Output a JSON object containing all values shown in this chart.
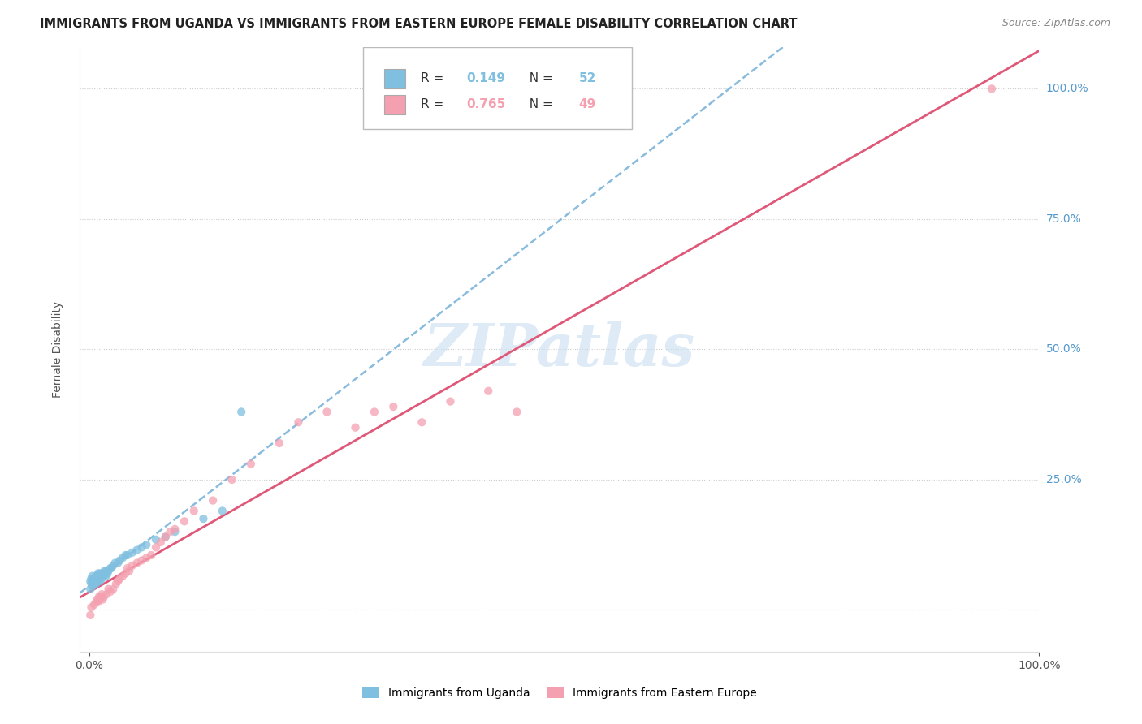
{
  "title": "IMMIGRANTS FROM UGANDA VS IMMIGRANTS FROM EASTERN EUROPE FEMALE DISABILITY CORRELATION CHART",
  "source": "Source: ZipAtlas.com",
  "ylabel": "Female Disability",
  "series1": {
    "name": "Immigrants from Uganda",
    "color": "#7fbfdf",
    "R": 0.149,
    "N": 52,
    "x": [
      0.001,
      0.001,
      0.002,
      0.002,
      0.003,
      0.003,
      0.004,
      0.004,
      0.005,
      0.005,
      0.006,
      0.006,
      0.007,
      0.007,
      0.008,
      0.009,
      0.009,
      0.01,
      0.01,
      0.011,
      0.011,
      0.012,
      0.013,
      0.013,
      0.014,
      0.015,
      0.015,
      0.016,
      0.017,
      0.018,
      0.018,
      0.019,
      0.02,
      0.022,
      0.023,
      0.025,
      0.027,
      0.03,
      0.032,
      0.035,
      0.038,
      0.04,
      0.045,
      0.05,
      0.055,
      0.06,
      0.07,
      0.08,
      0.09,
      0.12,
      0.14,
      0.16
    ],
    "y": [
      0.04,
      0.055,
      0.05,
      0.06,
      0.045,
      0.065,
      0.05,
      0.055,
      0.05,
      0.06,
      0.055,
      0.06,
      0.05,
      0.065,
      0.06,
      0.055,
      0.07,
      0.06,
      0.065,
      0.055,
      0.07,
      0.065,
      0.06,
      0.07,
      0.065,
      0.07,
      0.065,
      0.075,
      0.07,
      0.065,
      0.075,
      0.07,
      0.075,
      0.08,
      0.08,
      0.085,
      0.09,
      0.09,
      0.095,
      0.1,
      0.105,
      0.105,
      0.11,
      0.115,
      0.12,
      0.125,
      0.135,
      0.14,
      0.15,
      0.175,
      0.19,
      0.38
    ]
  },
  "series2": {
    "name": "Immigrants from Eastern Europe",
    "color": "#f4a0b0",
    "R": 0.765,
    "N": 49,
    "x": [
      0.001,
      0.002,
      0.005,
      0.007,
      0.008,
      0.009,
      0.01,
      0.011,
      0.012,
      0.013,
      0.014,
      0.015,
      0.018,
      0.02,
      0.022,
      0.025,
      0.028,
      0.03,
      0.032,
      0.035,
      0.038,
      0.04,
      0.042,
      0.045,
      0.05,
      0.055,
      0.06,
      0.065,
      0.07,
      0.075,
      0.08,
      0.085,
      0.09,
      0.1,
      0.11,
      0.13,
      0.15,
      0.17,
      0.2,
      0.22,
      0.25,
      0.28,
      0.3,
      0.32,
      0.35,
      0.38,
      0.42,
      0.45,
      0.95
    ],
    "y": [
      -0.01,
      0.005,
      0.01,
      0.015,
      0.02,
      0.015,
      0.025,
      0.02,
      0.025,
      0.03,
      0.02,
      0.025,
      0.03,
      0.04,
      0.035,
      0.04,
      0.05,
      0.055,
      0.06,
      0.065,
      0.07,
      0.08,
      0.075,
      0.085,
      0.09,
      0.095,
      0.1,
      0.105,
      0.12,
      0.13,
      0.14,
      0.15,
      0.155,
      0.17,
      0.19,
      0.21,
      0.25,
      0.28,
      0.32,
      0.36,
      0.38,
      0.35,
      0.38,
      0.39,
      0.36,
      0.4,
      0.42,
      0.38,
      1.0
    ]
  },
  "trendline1_color": "#88bbdd",
  "trendline2_color": "#e05878",
  "watermark_color": "#c8dff0",
  "xlim": [
    -0.01,
    1.0
  ],
  "ylim": [
    -0.08,
    1.08
  ],
  "x_ticks": [
    0.0,
    1.0
  ],
  "x_ticklabels": [
    "0.0%",
    "100.0%"
  ],
  "y_ticks": [
    0.0,
    0.25,
    0.5,
    0.75,
    1.0
  ],
  "y_ticklabels_right": [
    "",
    "25.0%",
    "50.0%",
    "75.0%",
    "100.0%"
  ]
}
